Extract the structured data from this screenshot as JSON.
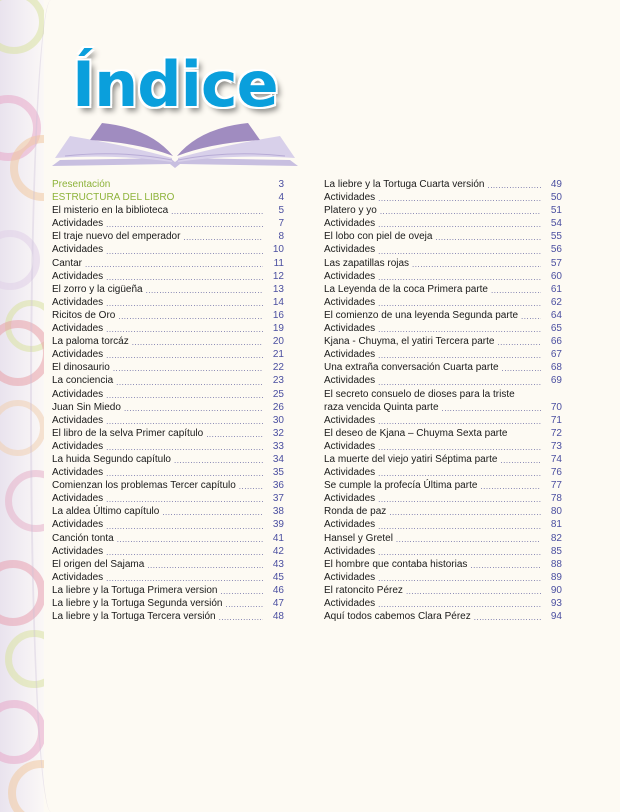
{
  "title": "Índice",
  "colors": {
    "title": "#0a9fdc",
    "section": "#8db33a",
    "page_numbers": "#4b4fa0",
    "book": "#a08cc0"
  },
  "left_column": [
    {
      "label": "Presentación",
      "page": "3",
      "style": "section"
    },
    {
      "label": "ESTRUCTURA DEL LIBRO",
      "page": "4",
      "style": "section"
    },
    {
      "label": "El misterio en la biblioteca",
      "page": "5"
    },
    {
      "label": "Actividades",
      "page": "7"
    },
    {
      "label": "El traje nuevo del emperador",
      "page": "8"
    },
    {
      "label": "Actividades",
      "page": "10"
    },
    {
      "label": "Cantar",
      "page": "11"
    },
    {
      "label": "Actividades",
      "page": "12"
    },
    {
      "label": "El zorro y la cigüeña",
      "page": "13"
    },
    {
      "label": "Actividades",
      "page": "14"
    },
    {
      "label": "Ricitos de Oro",
      "page": "16"
    },
    {
      "label": "Actividades",
      "page": "19"
    },
    {
      "label": "La paloma torcáz",
      "page": "20"
    },
    {
      "label": "Actividades",
      "page": "21"
    },
    {
      "label": "El dinosaurio",
      "page": "22"
    },
    {
      "label": "La conciencia",
      "page": "23"
    },
    {
      "label": "Actividades",
      "page": "25"
    },
    {
      "label": "Juan Sin Miedo",
      "page": "26"
    },
    {
      "label": "Actividades",
      "page": "30"
    },
    {
      "label": "El libro de la selva Primer capítulo",
      "page": "32"
    },
    {
      "label": "Actividades",
      "page": "33"
    },
    {
      "label": "La huida Segundo capítulo",
      "page": "34"
    },
    {
      "label": "Actividades",
      "page": "35"
    },
    {
      "label": "Comienzan los problemas Tercer capítulo",
      "page": "36"
    },
    {
      "label": "Actividades",
      "page": "37"
    },
    {
      "label": "La aldea Último capítulo",
      "page": "38"
    },
    {
      "label": "Actividades",
      "page": "39"
    },
    {
      "label": "Canción tonta",
      "page": "41"
    },
    {
      "label": "Actividades",
      "page": "42"
    },
    {
      "label": "El origen del Sajama",
      "page": "43"
    },
    {
      "label": "Actividades",
      "page": "45"
    },
    {
      "label": "La liebre y la Tortuga Primera version",
      "page": "46"
    },
    {
      "label": "La liebre y la Tortuga Segunda versión",
      "page": "47"
    },
    {
      "label": "La liebre y la Tortuga Tercera versión",
      "page": "48"
    }
  ],
  "right_column": [
    {
      "label": "La liebre y la Tortuga Cuarta versión",
      "page": "49"
    },
    {
      "label": "Actividades",
      "page": "50"
    },
    {
      "label": "Platero y yo",
      "page": "51"
    },
    {
      "label": "Actividades",
      "page": "54"
    },
    {
      "label": "El lobo con piel de oveja",
      "page": "55"
    },
    {
      "label": "Actividades",
      "page": "56"
    },
    {
      "label": "Las zapatillas rojas",
      "page": "57"
    },
    {
      "label": "Actividades",
      "page": "60"
    },
    {
      "label": "La Leyenda de la coca Primera parte",
      "page": "61"
    },
    {
      "label": "Actividades",
      "page": "62"
    },
    {
      "label": "El comienzo de una leyenda Segunda parte",
      "page": "64"
    },
    {
      "label": "Actividades",
      "page": "65"
    },
    {
      "label": "Kjana - Chuyma,  el  yatiri Tercera parte",
      "page": "66"
    },
    {
      "label": "Actividades",
      "page": "67"
    },
    {
      "label": "Una extraña conversación Cuarta parte",
      "page": "68"
    },
    {
      "label": "Actividades",
      "page": "69"
    },
    {
      "label": "raza vencida Quinta  parte",
      "first_line": "El secreto consuelo de dioses para la triste",
      "page": "70"
    },
    {
      "label": "Actividades",
      "page": "71"
    },
    {
      "label": "El deseo de Kjana – Chuyma Sexta parte",
      "page": "72",
      "no_leader": true
    },
    {
      "label": "Actividades",
      "page": "73"
    },
    {
      "label": "La muerte del viejo yatiri Séptima parte",
      "page": "74"
    },
    {
      "label": "Actividades",
      "page": "76"
    },
    {
      "label": "Se cumple la profecía Última parte",
      "page": "77"
    },
    {
      "label": "Actividades",
      "page": "78"
    },
    {
      "label": "Ronda de paz",
      "page": "80"
    },
    {
      "label": "Actividades",
      "page": "81"
    },
    {
      "label": "Hansel y Gretel",
      "page": "82"
    },
    {
      "label": "Actividades",
      "page": "85"
    },
    {
      "label": "El hombre que contaba historias",
      "page": "88"
    },
    {
      "label": "Actividades",
      "page": "89"
    },
    {
      "label": "El ratoncito Pérez",
      "page": "90"
    },
    {
      "label": "Actividades",
      "page": "93"
    },
    {
      "label": "Aquí todos cabemos Clara Pérez",
      "page": "94"
    }
  ]
}
